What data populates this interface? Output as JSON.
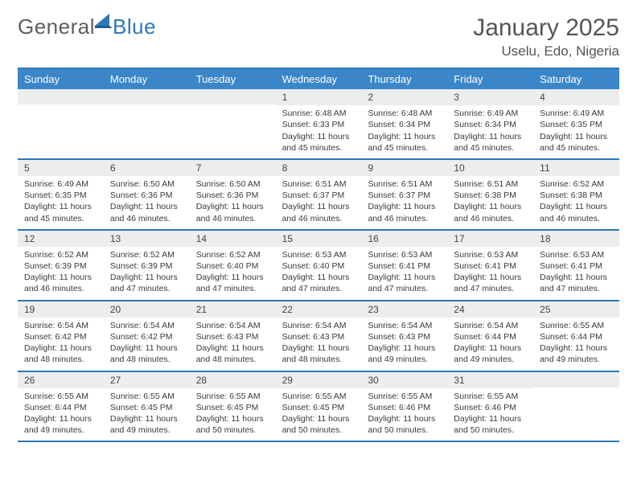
{
  "brand": {
    "word1": "General",
    "word2": "Blue",
    "color1": "#5f5f5f",
    "color2": "#2f77b6"
  },
  "title": "January 2025",
  "location": "Uselu, Edo, Nigeria",
  "colors": {
    "headerBg": "#3a86c8",
    "headerText": "#ffffff",
    "rule": "#2f77b6",
    "dayBar": "#eceeee",
    "text": "#3a3a3a"
  },
  "dayHeaders": [
    "Sunday",
    "Monday",
    "Tuesday",
    "Wednesday",
    "Thursday",
    "Friday",
    "Saturday"
  ],
  "weeks": [
    [
      {
        "n": "",
        "sr": "",
        "ss": "",
        "dl": ""
      },
      {
        "n": "",
        "sr": "",
        "ss": "",
        "dl": ""
      },
      {
        "n": "",
        "sr": "",
        "ss": "",
        "dl": ""
      },
      {
        "n": "1",
        "sr": "Sunrise: 6:48 AM",
        "ss": "Sunset: 6:33 PM",
        "dl": "Daylight: 11 hours and 45 minutes."
      },
      {
        "n": "2",
        "sr": "Sunrise: 6:48 AM",
        "ss": "Sunset: 6:34 PM",
        "dl": "Daylight: 11 hours and 45 minutes."
      },
      {
        "n": "3",
        "sr": "Sunrise: 6:49 AM",
        "ss": "Sunset: 6:34 PM",
        "dl": "Daylight: 11 hours and 45 minutes."
      },
      {
        "n": "4",
        "sr": "Sunrise: 6:49 AM",
        "ss": "Sunset: 6:35 PM",
        "dl": "Daylight: 11 hours and 45 minutes."
      }
    ],
    [
      {
        "n": "5",
        "sr": "Sunrise: 6:49 AM",
        "ss": "Sunset: 6:35 PM",
        "dl": "Daylight: 11 hours and 45 minutes."
      },
      {
        "n": "6",
        "sr": "Sunrise: 6:50 AM",
        "ss": "Sunset: 6:36 PM",
        "dl": "Daylight: 11 hours and 46 minutes."
      },
      {
        "n": "7",
        "sr": "Sunrise: 6:50 AM",
        "ss": "Sunset: 6:36 PM",
        "dl": "Daylight: 11 hours and 46 minutes."
      },
      {
        "n": "8",
        "sr": "Sunrise: 6:51 AM",
        "ss": "Sunset: 6:37 PM",
        "dl": "Daylight: 11 hours and 46 minutes."
      },
      {
        "n": "9",
        "sr": "Sunrise: 6:51 AM",
        "ss": "Sunset: 6:37 PM",
        "dl": "Daylight: 11 hours and 46 minutes."
      },
      {
        "n": "10",
        "sr": "Sunrise: 6:51 AM",
        "ss": "Sunset: 6:38 PM",
        "dl": "Daylight: 11 hours and 46 minutes."
      },
      {
        "n": "11",
        "sr": "Sunrise: 6:52 AM",
        "ss": "Sunset: 6:38 PM",
        "dl": "Daylight: 11 hours and 46 minutes."
      }
    ],
    [
      {
        "n": "12",
        "sr": "Sunrise: 6:52 AM",
        "ss": "Sunset: 6:39 PM",
        "dl": "Daylight: 11 hours and 46 minutes."
      },
      {
        "n": "13",
        "sr": "Sunrise: 6:52 AM",
        "ss": "Sunset: 6:39 PM",
        "dl": "Daylight: 11 hours and 47 minutes."
      },
      {
        "n": "14",
        "sr": "Sunrise: 6:52 AM",
        "ss": "Sunset: 6:40 PM",
        "dl": "Daylight: 11 hours and 47 minutes."
      },
      {
        "n": "15",
        "sr": "Sunrise: 6:53 AM",
        "ss": "Sunset: 6:40 PM",
        "dl": "Daylight: 11 hours and 47 minutes."
      },
      {
        "n": "16",
        "sr": "Sunrise: 6:53 AM",
        "ss": "Sunset: 6:41 PM",
        "dl": "Daylight: 11 hours and 47 minutes."
      },
      {
        "n": "17",
        "sr": "Sunrise: 6:53 AM",
        "ss": "Sunset: 6:41 PM",
        "dl": "Daylight: 11 hours and 47 minutes."
      },
      {
        "n": "18",
        "sr": "Sunrise: 6:53 AM",
        "ss": "Sunset: 6:41 PM",
        "dl": "Daylight: 11 hours and 47 minutes."
      }
    ],
    [
      {
        "n": "19",
        "sr": "Sunrise: 6:54 AM",
        "ss": "Sunset: 6:42 PM",
        "dl": "Daylight: 11 hours and 48 minutes."
      },
      {
        "n": "20",
        "sr": "Sunrise: 6:54 AM",
        "ss": "Sunset: 6:42 PM",
        "dl": "Daylight: 11 hours and 48 minutes."
      },
      {
        "n": "21",
        "sr": "Sunrise: 6:54 AM",
        "ss": "Sunset: 6:43 PM",
        "dl": "Daylight: 11 hours and 48 minutes."
      },
      {
        "n": "22",
        "sr": "Sunrise: 6:54 AM",
        "ss": "Sunset: 6:43 PM",
        "dl": "Daylight: 11 hours and 48 minutes."
      },
      {
        "n": "23",
        "sr": "Sunrise: 6:54 AM",
        "ss": "Sunset: 6:43 PM",
        "dl": "Daylight: 11 hours and 49 minutes."
      },
      {
        "n": "24",
        "sr": "Sunrise: 6:54 AM",
        "ss": "Sunset: 6:44 PM",
        "dl": "Daylight: 11 hours and 49 minutes."
      },
      {
        "n": "25",
        "sr": "Sunrise: 6:55 AM",
        "ss": "Sunset: 6:44 PM",
        "dl": "Daylight: 11 hours and 49 minutes."
      }
    ],
    [
      {
        "n": "26",
        "sr": "Sunrise: 6:55 AM",
        "ss": "Sunset: 6:44 PM",
        "dl": "Daylight: 11 hours and 49 minutes."
      },
      {
        "n": "27",
        "sr": "Sunrise: 6:55 AM",
        "ss": "Sunset: 6:45 PM",
        "dl": "Daylight: 11 hours and 49 minutes."
      },
      {
        "n": "28",
        "sr": "Sunrise: 6:55 AM",
        "ss": "Sunset: 6:45 PM",
        "dl": "Daylight: 11 hours and 50 minutes."
      },
      {
        "n": "29",
        "sr": "Sunrise: 6:55 AM",
        "ss": "Sunset: 6:45 PM",
        "dl": "Daylight: 11 hours and 50 minutes."
      },
      {
        "n": "30",
        "sr": "Sunrise: 6:55 AM",
        "ss": "Sunset: 6:46 PM",
        "dl": "Daylight: 11 hours and 50 minutes."
      },
      {
        "n": "31",
        "sr": "Sunrise: 6:55 AM",
        "ss": "Sunset: 6:46 PM",
        "dl": "Daylight: 11 hours and 50 minutes."
      },
      {
        "n": "",
        "sr": "",
        "ss": "",
        "dl": ""
      }
    ]
  ]
}
